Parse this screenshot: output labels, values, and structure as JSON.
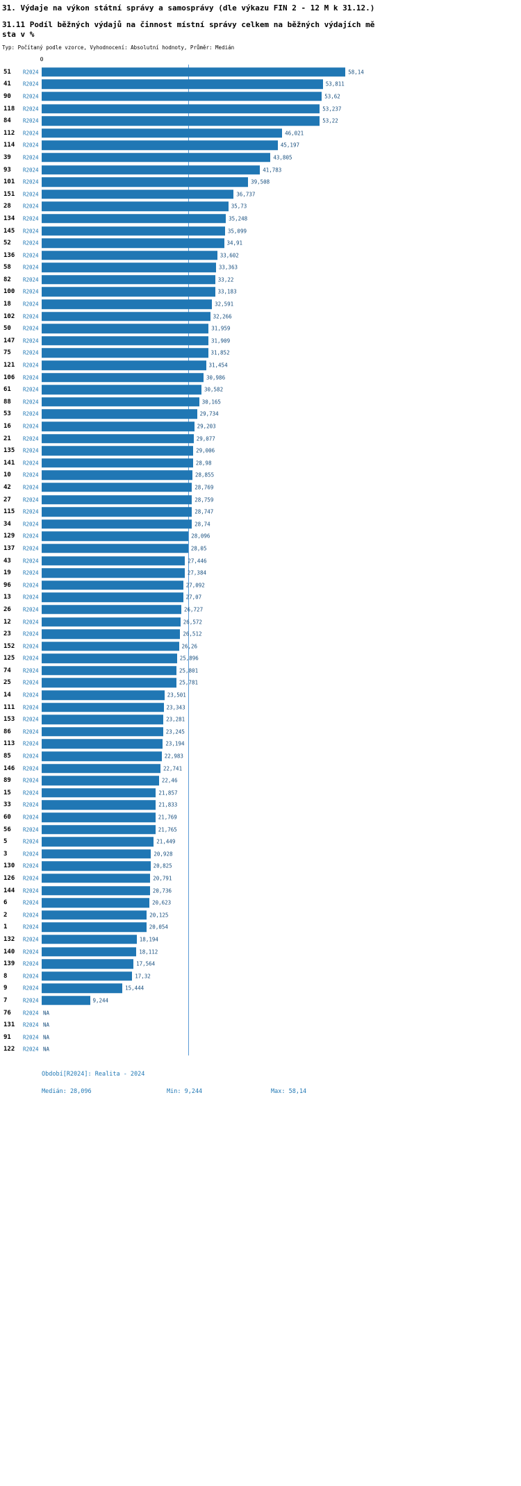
{
  "header": {
    "title": "31. Výdaje na výkon státní správy a samosprávy (dle výkazu FIN 2 - 12 M k 31.12.)",
    "subtitle_line1": "31.11 Podíl běžných výdajů na činnost místní správy celkem na běžných výdajích mě",
    "subtitle_line2": "sta v %",
    "meta": "Typ: Počítaný podle vzorce, Vyhodnocení: Absolutní hodnoty, Průměr: Medián"
  },
  "axis": {
    "zero_label": "0"
  },
  "footer": {
    "period": "Období[R2024]: Realita - 2024",
    "median": "Medián: 28,096",
    "min": "Min: 9,244",
    "max": "Max: 58,14"
  },
  "colors": {
    "bar": "#2077b4",
    "series_label": "#1f77b4",
    "value_label": "#174e7e",
    "median_line": "#5b9bd5",
    "footer_text": "#1f77b4"
  },
  "chart_data": {
    "type": "bar",
    "orientation": "horizontal",
    "series_name": "R2024",
    "title": "31.11 Podíl běžných výdajů na činnost místní správy celkem na běžných výdajích města v %",
    "xlim": [
      0,
      62
    ],
    "median": 28.096,
    "min": 9.244,
    "max": 58.14,
    "grid": false,
    "legend_position": "none",
    "categories": [
      "51",
      "41",
      "90",
      "118",
      "84",
      "112",
      "114",
      "39",
      "93",
      "101",
      "151",
      "28",
      "134",
      "145",
      "52",
      "136",
      "58",
      "82",
      "100",
      "18",
      "102",
      "50",
      "147",
      "75",
      "121",
      "106",
      "61",
      "88",
      "53",
      "16",
      "21",
      "135",
      "141",
      "10",
      "42",
      "27",
      "115",
      "34",
      "129",
      "137",
      "43",
      "19",
      "96",
      "13",
      "26",
      "12",
      "23",
      "152",
      "125",
      "74",
      "25",
      "14",
      "111",
      "153",
      "86",
      "113",
      "85",
      "146",
      "89",
      "15",
      "33",
      "60",
      "56",
      "5",
      "3",
      "130",
      "126",
      "144",
      "6",
      "2",
      "1",
      "132",
      "140",
      "139",
      "8",
      "9",
      "7",
      "76",
      "131",
      "91",
      "122"
    ],
    "values": [
      58.14,
      53.811,
      53.62,
      53.237,
      53.22,
      46.021,
      45.197,
      43.805,
      41.783,
      39.508,
      36.737,
      35.73,
      35.248,
      35.099,
      34.91,
      33.602,
      33.363,
      33.22,
      33.183,
      32.591,
      32.266,
      31.959,
      31.909,
      31.852,
      31.454,
      30.986,
      30.582,
      30.165,
      29.734,
      29.203,
      29.077,
      29.006,
      28.98,
      28.855,
      28.769,
      28.759,
      28.747,
      28.74,
      28.096,
      28.05,
      27.446,
      27.384,
      27.092,
      27.07,
      26.727,
      26.572,
      26.512,
      26.26,
      25.896,
      25.801,
      25.781,
      23.501,
      23.343,
      23.281,
      23.245,
      23.194,
      22.983,
      22.741,
      22.46,
      21.857,
      21.833,
      21.769,
      21.765,
      21.449,
      20.928,
      20.825,
      20.791,
      20.736,
      20.623,
      20.125,
      20.054,
      18.194,
      18.112,
      17.564,
      17.32,
      15.444,
      9.244,
      null,
      null,
      null,
      null
    ],
    "value_labels": [
      "58,14",
      "53,811",
      "53,62",
      "53,237",
      "53,22",
      "46,021",
      "45,197",
      "43,805",
      "41,783",
      "39,508",
      "36,737",
      "35,73",
      "35,248",
      "35,099",
      "34,91",
      "33,602",
      "33,363",
      "33,22",
      "33,183",
      "32,591",
      "32,266",
      "31,959",
      "31,909",
      "31,852",
      "31,454",
      "30,986",
      "30,582",
      "30,165",
      "29,734",
      "29,203",
      "29,077",
      "29,006",
      "28,98",
      "28,855",
      "28,769",
      "28,759",
      "28,747",
      "28,74",
      "28,096",
      "28,05",
      "27,446",
      "27,384",
      "27,092",
      "27,07",
      "26,727",
      "26,572",
      "26,512",
      "26,26",
      "25,896",
      "25,801",
      "25,781",
      "23,501",
      "23,343",
      "23,281",
      "23,245",
      "23,194",
      "22,983",
      "22,741",
      "22,46",
      "21,857",
      "21,833",
      "21,769",
      "21,765",
      "21,449",
      "20,928",
      "20,825",
      "20,791",
      "20,736",
      "20,623",
      "20,125",
      "20,054",
      "18,194",
      "18,112",
      "17,564",
      "17,32",
      "15,444",
      "9,244",
      "NA",
      "NA",
      "NA",
      "NA"
    ]
  }
}
